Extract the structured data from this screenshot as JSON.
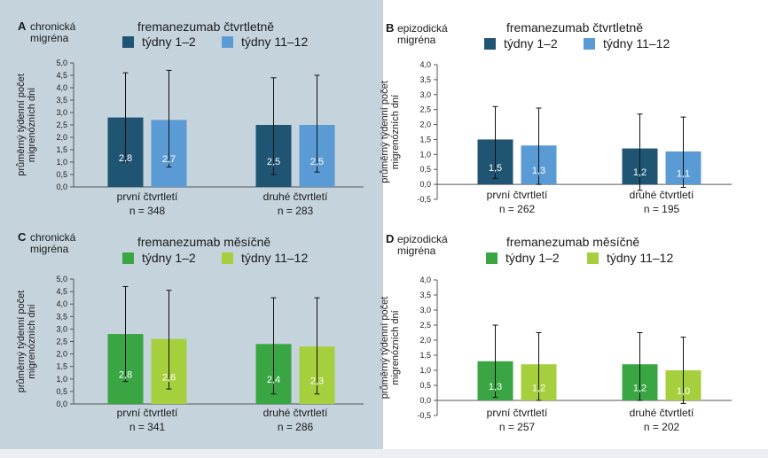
{
  "chart_data": [
    {
      "type": "bar",
      "panel_letter": "A",
      "panel_label": [
        "chronická",
        "migréna"
      ],
      "title": "fremanezumab čtvrtletně",
      "ylabel": [
        "průměrný týdenní počet",
        "migrenózních dní"
      ],
      "ylim": [
        0,
        5.0
      ],
      "yticks": [
        "0,0",
        "0,5",
        "1,0",
        "1,5",
        "2,0",
        "2,5",
        "3,0",
        "3,5",
        "4,0",
        "4,5",
        "5,0"
      ],
      "categories": [
        [
          "první čtvrtletí",
          "n = 348"
        ],
        [
          "druhé čtvrtletí",
          "n = 283"
        ]
      ],
      "series": [
        {
          "name": "týdny 1–2",
          "color": "#1f5573",
          "values": [
            2.8,
            2.5
          ],
          "labels": [
            "2,8",
            "2,5"
          ],
          "err_low": [
            1.0,
            0.5
          ],
          "err_high": [
            4.6,
            4.4
          ]
        },
        {
          "name": "týdny 11–12",
          "color": "#5b9bd5",
          "values": [
            2.7,
            2.5
          ],
          "labels": [
            "2,7",
            "2,5"
          ],
          "err_low": [
            0.8,
            0.6
          ],
          "err_high": [
            4.7,
            4.5
          ]
        }
      ]
    },
    {
      "type": "bar",
      "panel_letter": "B",
      "panel_label": [
        "epizodická",
        "migréna"
      ],
      "title": "fremanezumab čtvrtletně",
      "ylabel": [
        "průměrný týdenní počet",
        "migrenózních dní"
      ],
      "ylim": [
        -0.5,
        4.0
      ],
      "yticks": [
        "-0,5",
        "0,0",
        "0,5",
        "1,0",
        "1,5",
        "2,0",
        "2,5",
        "3,0",
        "3,5",
        "4,0"
      ],
      "categories": [
        [
          "první čtvrtletí",
          "n = 262"
        ],
        [
          "druhé čtvrtletí",
          "n = 195"
        ]
      ],
      "series": [
        {
          "name": "týdny 1–2",
          "color": "#1f5573",
          "values": [
            1.5,
            1.2
          ],
          "labels": [
            "1,5",
            "1,2"
          ],
          "err_low": [
            0.2,
            -0.2
          ],
          "err_high": [
            2.6,
            2.35
          ]
        },
        {
          "name": "týdny 11–12",
          "color": "#5b9bd5",
          "values": [
            1.3,
            1.1
          ],
          "labels": [
            "1,3",
            "1,1"
          ],
          "err_low": [
            0.0,
            -0.1
          ],
          "err_high": [
            2.55,
            2.25
          ]
        }
      ]
    },
    {
      "type": "bar",
      "panel_letter": "C",
      "panel_label": [
        "chronická",
        "migréna"
      ],
      "title": "fremanezumab měsíčně",
      "ylabel": [
        "průměrný týdenní počet",
        "migrenózních dní"
      ],
      "ylim": [
        0,
        5.0
      ],
      "yticks": [
        "0,0",
        "0,5",
        "1,0",
        "1,5",
        "2,0",
        "2,5",
        "3,0",
        "3,5",
        "4,0",
        "4,5",
        "5,0"
      ],
      "categories": [
        [
          "první čtvrtletí",
          "n = 341"
        ],
        [
          "druhé čtvrtletí",
          "n = 286"
        ]
      ],
      "series": [
        {
          "name": "týdny 1–2",
          "color": "#3aa643",
          "values": [
            2.8,
            2.4
          ],
          "labels": [
            "2,8",
            "2,4"
          ],
          "err_low": [
            0.9,
            0.4
          ],
          "err_high": [
            4.7,
            4.25
          ]
        },
        {
          "name": "týdny 11–12",
          "color": "#a6cf3e",
          "values": [
            2.6,
            2.3
          ],
          "labels": [
            "2,6",
            "2,3"
          ],
          "err_low": [
            0.6,
            0.4
          ],
          "err_high": [
            4.55,
            4.25
          ]
        }
      ]
    },
    {
      "type": "bar",
      "panel_letter": "D",
      "panel_label": [
        "epizodická",
        "migréna"
      ],
      "title": "fremanezumab měsíčně",
      "ylabel": [
        "průměrný týdenní počet",
        "migrenózních dní"
      ],
      "ylim": [
        -0.5,
        4.0
      ],
      "yticks": [
        "-0,5",
        "0,0",
        "0,5",
        "1,0",
        "1,5",
        "2,0",
        "2,5",
        "3,0",
        "3,5",
        "4,0"
      ],
      "categories": [
        [
          "první čtvrtletí",
          "n = 257"
        ],
        [
          "druhé čtvrtletí",
          "n = 202"
        ]
      ],
      "series": [
        {
          "name": "týdny 1–2",
          "color": "#3aa643",
          "values": [
            1.3,
            1.2
          ],
          "labels": [
            "1,3",
            "1,2"
          ],
          "err_low": [
            0.1,
            0.0
          ],
          "err_high": [
            2.5,
            2.25
          ]
        },
        {
          "name": "týdny 11–12",
          "color": "#a6cf3e",
          "values": [
            1.2,
            1.0
          ],
          "labels": [
            "1,2",
            "1,0"
          ],
          "err_low": [
            0.0,
            -0.1
          ],
          "err_high": [
            2.25,
            2.1
          ]
        }
      ]
    }
  ]
}
